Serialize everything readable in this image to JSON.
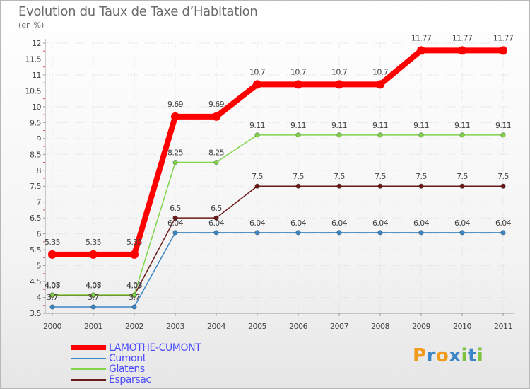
{
  "chart_data": {
    "type": "line",
    "title": "Evolution du Taux de Taxe d’Habitation",
    "subtitle": "(en %)",
    "xlabel": "",
    "ylabel": "",
    "ylim": [
      3.5,
      12
    ],
    "y_ticks": [
      "3.5",
      "4",
      "4.5",
      "5",
      "5.5",
      "6",
      "6.5",
      "7",
      "7.5",
      "8",
      "8.5",
      "9",
      "9.5",
      "10",
      "10.5",
      "11",
      "11.5",
      "12"
    ],
    "categories": [
      "2000",
      "2001",
      "2002",
      "2003",
      "2004",
      "2005",
      "2006",
      "2007",
      "2008",
      "2009",
      "2010",
      "2011"
    ],
    "series": [
      {
        "name": "LAMOTHE-CUMONT",
        "color": "#ff0000",
        "values": [
          5.35,
          5.35,
          5.35,
          9.69,
          9.69,
          10.7,
          10.7,
          10.7,
          10.7,
          11.77,
          11.77,
          11.77
        ],
        "labels": [
          "5.35",
          "5.35",
          "5.35",
          "9.69",
          "9.69",
          "10.7",
          "10.7",
          "10.7",
          "10.7",
          "11.77",
          "11.77",
          "11.77"
        ]
      },
      {
        "name": "Cumont",
        "color": "#3b86c6",
        "values": [
          3.7,
          3.7,
          3.7,
          6.04,
          6.04,
          6.04,
          6.04,
          6.04,
          6.04,
          6.04,
          6.04,
          6.04
        ],
        "labels": [
          "3.7",
          "3.7",
          "3.7",
          "6.04",
          "6.04",
          "6.04",
          "6.04",
          "6.04",
          "6.04",
          "6.04",
          "6.04",
          "6.04"
        ]
      },
      {
        "name": "Glatens",
        "color": "#7fd44a",
        "values": [
          4.08,
          4.08,
          4.08,
          8.25,
          8.25,
          9.11,
          9.11,
          9.11,
          9.11,
          9.11,
          9.11,
          9.11
        ],
        "labels": [
          "4.08",
          "4.08",
          "4.08",
          "8.25",
          "8.25",
          "9.11",
          "9.11",
          "9.11",
          "9.11",
          "9.11",
          "9.11",
          "9.11"
        ]
      },
      {
        "name": "Esparsac",
        "color": "#6b1a1a",
        "values": [
          4.07,
          4.07,
          4.07,
          6.5,
          6.5,
          7.5,
          7.5,
          7.5,
          7.5,
          7.5,
          7.5,
          7.5
        ],
        "labels": [
          "4.07",
          "4.07",
          "4.07",
          "6.5",
          "6.5",
          "7.5",
          "7.5",
          "7.5",
          "7.5",
          "7.5",
          "7.5",
          "7.5"
        ]
      }
    ]
  },
  "logo": {
    "text": "Proxiti",
    "letters": [
      "P",
      "r",
      "o",
      "x",
      "i",
      "t",
      "i"
    ],
    "colors": [
      "#f29a1c",
      "#3b86c6",
      "#f29a1c",
      "#3b86c6",
      "#7fc242",
      "#3b86c6",
      "#7fc242"
    ]
  }
}
